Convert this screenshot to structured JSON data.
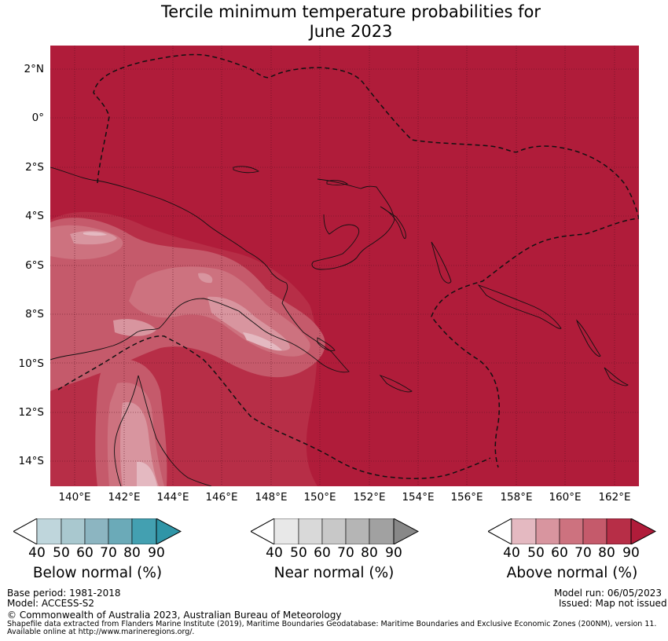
{
  "title_line1": "Tercile minimum temperature probabilities for",
  "title_line2": "June 2023",
  "y_axis_labels": [
    "2°N",
    "0°",
    "2°S",
    "4°S",
    "6°S",
    "8°S",
    "10°S",
    "12°S",
    "14°S"
  ],
  "x_axis_labels": [
    "140°E",
    "142°E",
    "144°E",
    "146°E",
    "148°E",
    "150°E",
    "152°E",
    "154°E",
    "156°E",
    "158°E",
    "160°E",
    "162°E"
  ],
  "colorbars": [
    {
      "title": "Below normal (%)",
      "ticks": [
        "40",
        "50",
        "60",
        "70",
        "80",
        "90"
      ],
      "colors": [
        "#bfd6dc",
        "#a9c8cf",
        "#8cb5c1",
        "#6baab8",
        "#43a0b1",
        "#2f95a7"
      ]
    },
    {
      "title": "Near normal (%)",
      "ticks": [
        "40",
        "50",
        "60",
        "70",
        "80",
        "90"
      ],
      "colors": [
        "#e8e8e8",
        "#d9d9d9",
        "#c8c8c8",
        "#b5b5b5",
        "#a1a1a1",
        "#888888"
      ]
    },
    {
      "title": "Above normal (%)",
      "ticks": [
        "40",
        "50",
        "60",
        "70",
        "80",
        "90"
      ],
      "colors": [
        "#e4b9c1",
        "#d8959f",
        "#cd727f",
        "#c55a6b",
        "#b72e47",
        "#b01c3a"
      ]
    }
  ],
  "map_colors": {
    "base": "#b01c3a",
    "l80": "#b72e47",
    "l70": "#c55a6b",
    "l60": "#cd727f",
    "l50": "#d8959f",
    "l40": "#e4b9c1"
  },
  "footer": {
    "base_period": "Base period: 1981-2018",
    "model": "Model: ACCESS-S2",
    "model_run": "Model run: 06/05/2023",
    "issued": "Issued: Map not issued",
    "copyright": "© Commonwealth of Australia 2023, Australian Bureau of Meteorology",
    "source_line1": "Shapefile data extracted from Flanders Marine Institute (2019), Maritime Boundaries Geodatabase: Maritime Boundaries and Exclusive Economic Zones (200NM), version 11.",
    "source_line2": "Available online at http://www.marineregions.org/."
  }
}
